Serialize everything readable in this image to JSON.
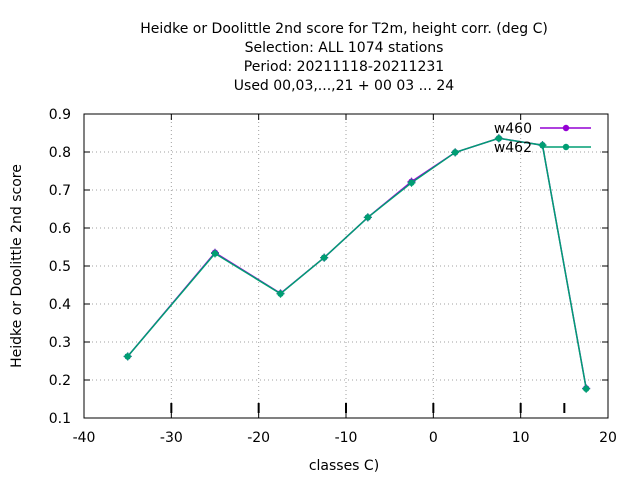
{
  "chart_data": {
    "type": "line",
    "title_lines": [
      "Heidke or Doolittle 2nd score  for T2m, height corr. (deg C)",
      "Selection: ALL   1074 stations",
      "Period: 20211118-20211231",
      "Used  00,03,...,21  + 00 03 ... 24"
    ],
    "xlabel": "classes C)",
    "ylabel": "Heidke or Doolittle 2nd score",
    "xlim": [
      -40,
      20
    ],
    "ylim": [
      0.1,
      0.9
    ],
    "xticks": [
      -40,
      -30,
      -20,
      -10,
      0,
      10,
      20
    ],
    "yticks": [
      0.1,
      0.2,
      0.3,
      0.4,
      0.5,
      0.6,
      0.7,
      0.8,
      0.9
    ],
    "ytick_labels": [
      "0.1",
      "0.2",
      "0.3",
      "0.4",
      "0.5",
      "0.6",
      "0.7",
      "0.8",
      "0.9"
    ],
    "minor_xticks": [
      -30,
      -20,
      -10,
      0,
      10,
      15
    ],
    "grid": true,
    "legend_position": "top-right",
    "series": [
      {
        "name": "w460",
        "color": "#9400d3",
        "x": [
          -35,
          -25,
          -17.5,
          -12.5,
          -7.5,
          -2.5,
          2.5,
          7.5,
          12.5,
          17.5
        ],
        "y": [
          0.262,
          0.535,
          0.428,
          0.522,
          0.628,
          0.722,
          0.799,
          0.836,
          0.818,
          0.178
        ]
      },
      {
        "name": "w462",
        "color": "#009e73",
        "x": [
          -35,
          -25,
          -17.5,
          -12.5,
          -7.5,
          -2.5,
          2.5,
          7.5,
          12.5,
          17.5
        ],
        "y": [
          0.262,
          0.533,
          0.427,
          0.522,
          0.628,
          0.719,
          0.799,
          0.836,
          0.818,
          0.177
        ]
      }
    ]
  }
}
